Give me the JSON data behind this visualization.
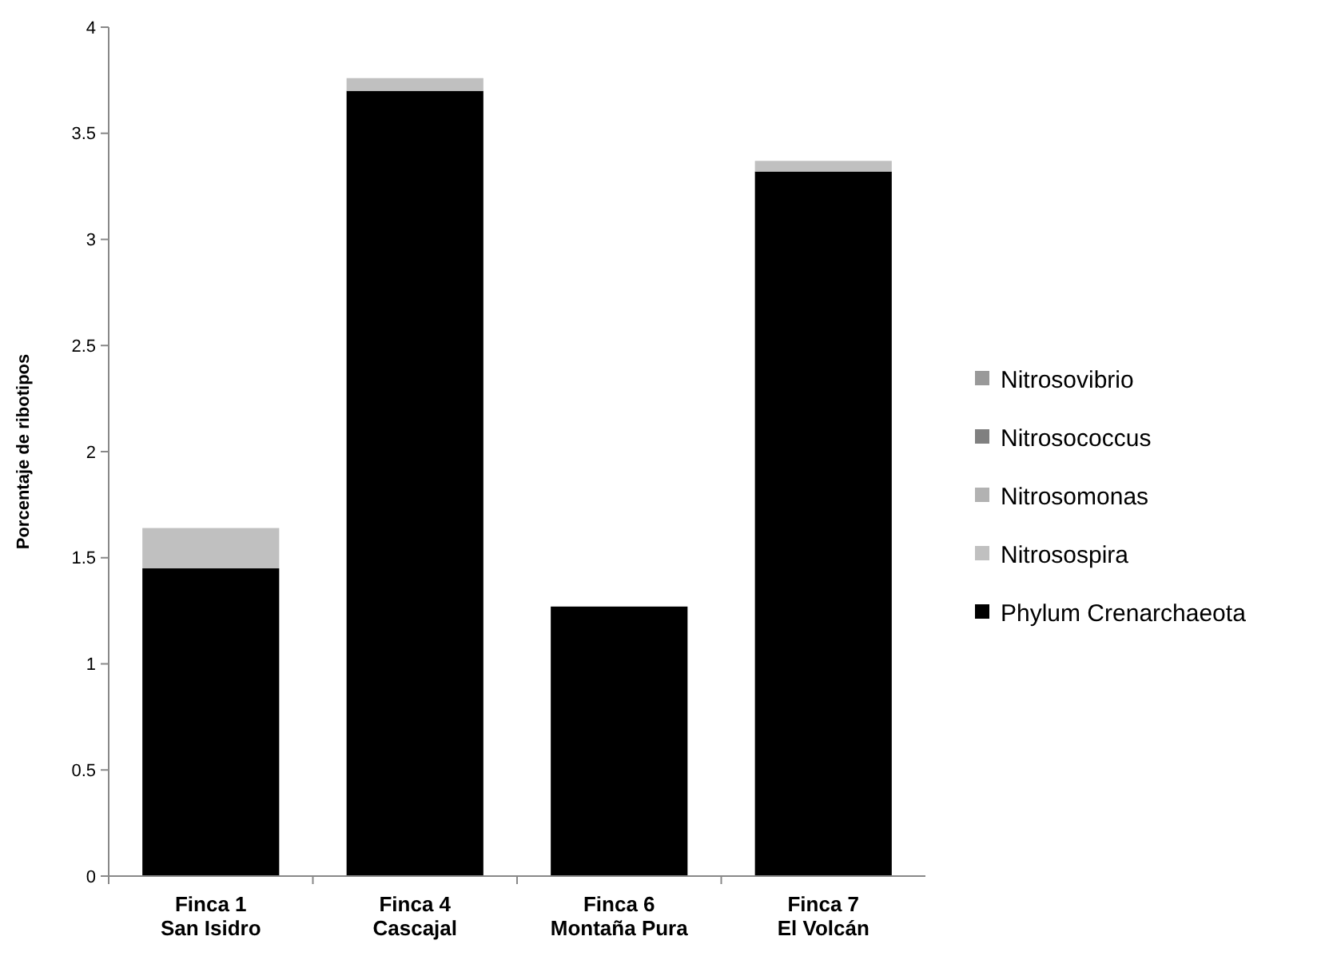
{
  "chart_data": {
    "type": "bar",
    "stacked": true,
    "ylabel": "Porcentaje de ribotipos",
    "categories": [
      "Finca 1\nSan Isidro",
      "Finca 4\nCascajal",
      "Finca 6\nMontaña Pura",
      "Finca 7\nEl Volcán"
    ],
    "series": [
      {
        "name": "Phylum Crenarchaeota",
        "color": "#000000",
        "values": [
          1.45,
          3.7,
          1.27,
          3.32
        ]
      },
      {
        "name": "Nitrosospira",
        "color": "#c0c0c0",
        "values": [
          0.19,
          0.06,
          0,
          0.05
        ]
      },
      {
        "name": "Nitrosomonas",
        "color": "#b2b2b2",
        "values": [
          0,
          0,
          0,
          0
        ]
      },
      {
        "name": "Nitrosococcus",
        "color": "#808080",
        "values": [
          0,
          0,
          0,
          0
        ]
      },
      {
        "name": "Nitrosovibrio",
        "color": "#999999",
        "values": [
          0,
          0,
          0,
          0
        ]
      }
    ],
    "ylim": [
      0,
      4
    ],
    "yticks": [
      0,
      0.5,
      1,
      1.5,
      2,
      2.5,
      3,
      3.5,
      4
    ],
    "grid": false,
    "legend": "right"
  }
}
